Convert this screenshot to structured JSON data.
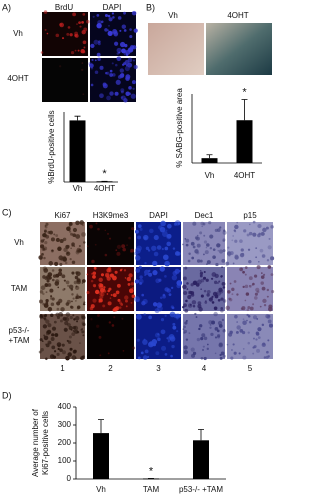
{
  "panel_a": {
    "label": "A)",
    "columns": [
      "BrdU",
      "DAPI"
    ],
    "rows": [
      "Vh",
      "4OHT"
    ]
  },
  "panel_b": {
    "label": "B)",
    "columns": [
      "Vh",
      "4OHT"
    ]
  },
  "panel_c": {
    "label": "C)",
    "columns": [
      "Ki67",
      "H3K9me3",
      "DAPI",
      "Dec1",
      "p15"
    ],
    "rows": [
      "Vh",
      "TAM",
      "p53-/- +TAM"
    ],
    "numbers": [
      1,
      2,
      3,
      4,
      5
    ]
  },
  "panel_d": {
    "label": "D)"
  },
  "chart_data": [
    {
      "type": "bar",
      "ylabel": [
        "%BrdU-positive cells"
      ],
      "categories": [
        "Vh",
        "4OHT"
      ],
      "values": [
        88,
        1
      ],
      "errors": [
        6,
        0
      ],
      "color": "#000000",
      "ylim": [
        0,
        100
      ],
      "annotation": "*",
      "annotation_index": 1
    },
    {
      "type": "bar",
      "ylabel": [
        "% SABG-positive area"
      ],
      "categories": [
        "Vh",
        "4OHT"
      ],
      "values": [
        7,
        62
      ],
      "errors": [
        5,
        30
      ],
      "color": "#000000",
      "ylim": [
        0,
        100
      ],
      "annotation": "*",
      "annotation_index": 1
    },
    {
      "type": "bar",
      "ylabel": [
        "Average number of",
        "Ki67-positive cells"
      ],
      "categories": [
        "Vh",
        "TAM",
        "p53-/- +TAM"
      ],
      "values": [
        255,
        3,
        215
      ],
      "errors": [
        75,
        0,
        60
      ],
      "color": "#000000",
      "ylim": [
        0,
        400
      ],
      "yticks": [
        0,
        100,
        200,
        300,
        400
      ],
      "annotation": "*",
      "annotation_index": 1
    }
  ]
}
